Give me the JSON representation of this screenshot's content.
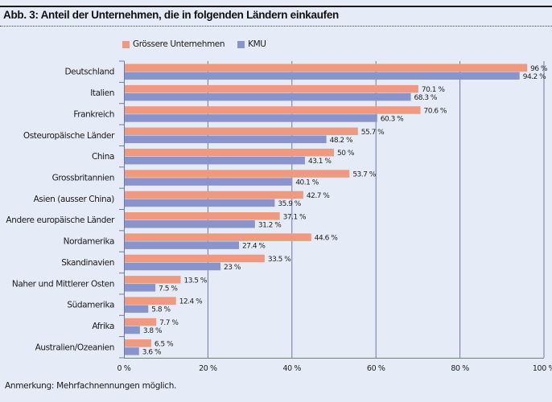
{
  "header": {
    "title": "Abb. 3: Anteil der Unternehmen, die in folgenden Ländern einkaufen"
  },
  "footer": {
    "note": "Anmerkung: Mehrfachnennungen möglich."
  },
  "chart_data": {
    "type": "bar",
    "orientation": "horizontal",
    "title": "Abb. 3: Anteil der Unternehmen, die in folgenden Ländern einkaufen",
    "xlabel": "",
    "ylabel": "",
    "xlim": [
      0,
      100
    ],
    "x_ticks": [
      0,
      20,
      40,
      60,
      80,
      100
    ],
    "x_tick_labels": [
      "0 %",
      "20 %",
      "40 %",
      "60 %",
      "80 %",
      "100 %"
    ],
    "grid": true,
    "legend_position": "top-center",
    "categories": [
      "Deutschland",
      "Italien",
      "Frankreich",
      "Osteuropäische Länder",
      "China",
      "Grossbritannien",
      "Asien (ausser China)",
      "Andere europäische Länder",
      "Nordamerika",
      "Skandinavien",
      "Naher und Mittlerer Osten",
      "Südamerika",
      "Afrika",
      "Australien/Ozeanien"
    ],
    "series": [
      {
        "name": "Grössere Unternehmen",
        "color": "#ee9a80",
        "values": [
          96,
          70.1,
          70.6,
          55.7,
          50,
          53.7,
          42.7,
          37.1,
          44.6,
          33.5,
          13.5,
          12.4,
          7.7,
          6.5
        ],
        "labels": [
          "96 %",
          "70.1 %",
          "70.6 %",
          "55.7 %",
          "50 %",
          "53.7 %",
          "42.7 %",
          "37.1 %",
          "44.6 %",
          "33.5 %",
          "13.5 %",
          "12.4 %",
          "7.7 %",
          "6.5 %"
        ]
      },
      {
        "name": "KMU",
        "color": "#8894cb",
        "values": [
          94.2,
          68.3,
          60.3,
          48.2,
          43.1,
          40.1,
          35.9,
          31.2,
          27.4,
          23,
          7.5,
          5.8,
          3.8,
          3.6
        ],
        "labels": [
          "94.2 %",
          "68.3 %",
          "60.3 %",
          "48.2 %",
          "43.1 %",
          "40.1 %",
          "35.9 %",
          "31.2 %",
          "27.4 %",
          "23 %",
          "7.5 %",
          "5.8 %",
          "3.8 %",
          "3.6 %"
        ]
      }
    ]
  }
}
